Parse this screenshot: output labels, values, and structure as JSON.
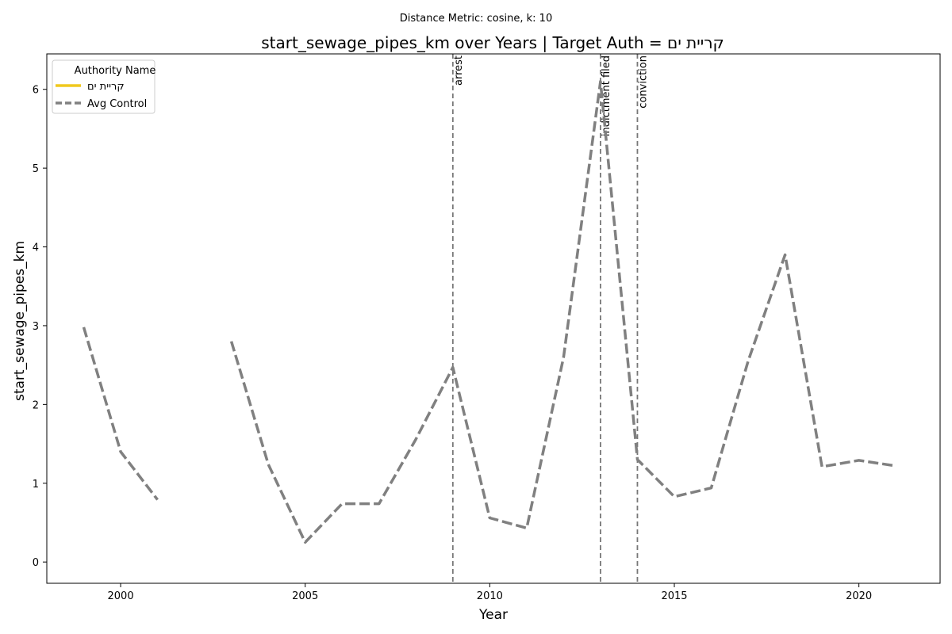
{
  "chart_data": {
    "type": "line",
    "suptitle": "Distance Metric: cosine, k: 10",
    "title": "start_sewage_pipes_km over Years | Target Auth = קריית ים",
    "xlabel": "Year",
    "ylabel": "start_sewage_pipes_km",
    "xlim": [
      1998,
      2022.2
    ],
    "ylim": [
      -0.27,
      6.45
    ],
    "xticks": [
      2000,
      2005,
      2010,
      2015,
      2020
    ],
    "yticks": [
      0,
      1,
      2,
      3,
      4,
      5,
      6
    ],
    "grid": false,
    "legend": {
      "title": "Authority Name",
      "placement": "top-left"
    },
    "series": [
      {
        "name": "קריית ים",
        "color": "#f0c91e",
        "style": "solid",
        "x": [],
        "y": []
      },
      {
        "name": "Avg Control",
        "color": "#808080",
        "style": "dashed",
        "x": [
          1999,
          2000,
          2001,
          2002,
          2003,
          2004,
          2005,
          2006,
          2007,
          2008,
          2009,
          2010,
          2011,
          2012,
          2013,
          2014,
          2015,
          2016,
          2017,
          2018,
          2019,
          2020,
          2021
        ],
        "y": [
          2.98,
          1.4,
          0.79,
          null,
          2.8,
          1.24,
          0.25,
          0.74,
          0.74,
          1.56,
          2.47,
          0.56,
          0.43,
          2.6,
          6.1,
          1.3,
          0.83,
          0.94,
          2.55,
          3.9,
          1.21,
          1.29,
          1.22
        ]
      }
    ],
    "events": [
      {
        "x": 2009,
        "label": "arrest"
      },
      {
        "x": 2013,
        "label": "indictment filed"
      },
      {
        "x": 2014,
        "label": "conviction"
      }
    ]
  }
}
